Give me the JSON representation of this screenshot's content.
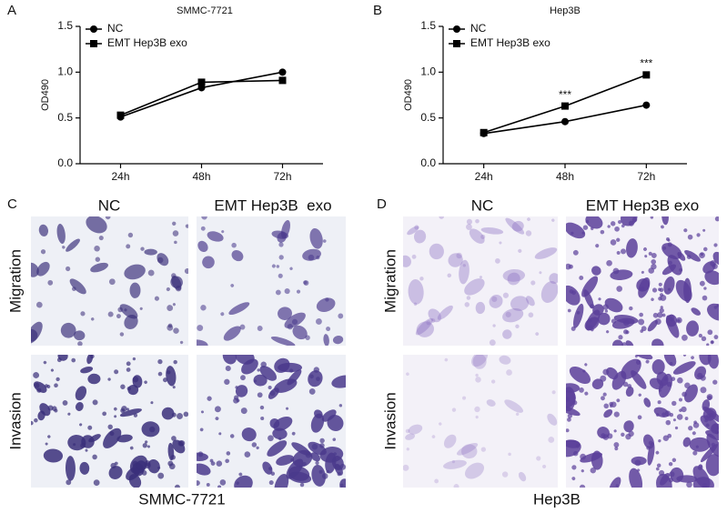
{
  "chart_data": [
    {
      "type": "line",
      "panel_label": "A",
      "title": "SMMC-7721",
      "y_label": "OD490",
      "categories": [
        "24h",
        "48h",
        "72h"
      ],
      "series": [
        {
          "name": "NC",
          "color": "#000000",
          "marker": "circle",
          "values": [
            0.51,
            0.83,
            1.0
          ]
        },
        {
          "name": "EMT Hep3B exo",
          "color": "#000000",
          "marker": "square",
          "values": [
            0.53,
            0.89,
            0.91
          ]
        }
      ],
      "ylim": [
        0,
        1.5
      ],
      "yticks": [
        {
          "value": 0,
          "label": "0.0"
        },
        0.5,
        {
          "value": 1,
          "label": "1.0"
        },
        1.5
      ],
      "legend": "upper-left"
    },
    {
      "type": "line",
      "panel_label": "B",
      "title": "Hep3B",
      "y_label": "OD490",
      "categories": [
        "24h",
        "48h",
        "72h"
      ],
      "series": [
        {
          "name": "NC",
          "color": "#000000",
          "marker": "circle",
          "values": [
            0.33,
            0.46,
            0.64
          ]
        },
        {
          "name": "EMT Hep3B exo",
          "color": "#000000",
          "marker": "square",
          "values": [
            0.34,
            0.63,
            0.97
          ]
        }
      ],
      "ylim": [
        0,
        1.5
      ],
      "yticks": [
        {
          "value": 0,
          "label": "0.0"
        },
        0.5,
        {
          "value": 1,
          "label": "1.0"
        },
        1.5
      ],
      "legend": "upper-left",
      "annotations": [
        {
          "text": "***",
          "category": "48h",
          "series": "EMT Hep3B exo"
        },
        {
          "text": "***",
          "category": "72h",
          "series": "EMT Hep3B exo"
        }
      ]
    }
  ],
  "image_panels": [
    {
      "panel_label": "C",
      "columns": [
        "NC",
        "EMT Hep3B  exo"
      ],
      "rows": [
        "Migration",
        "Invasion"
      ],
      "caption": "SMMC-7721"
    },
    {
      "panel_label": "D",
      "columns": [
        "NC",
        "EMT Hep3B exo"
      ],
      "rows": [
        "Migration",
        "Invasion"
      ],
      "caption": "Hep3B"
    }
  ]
}
